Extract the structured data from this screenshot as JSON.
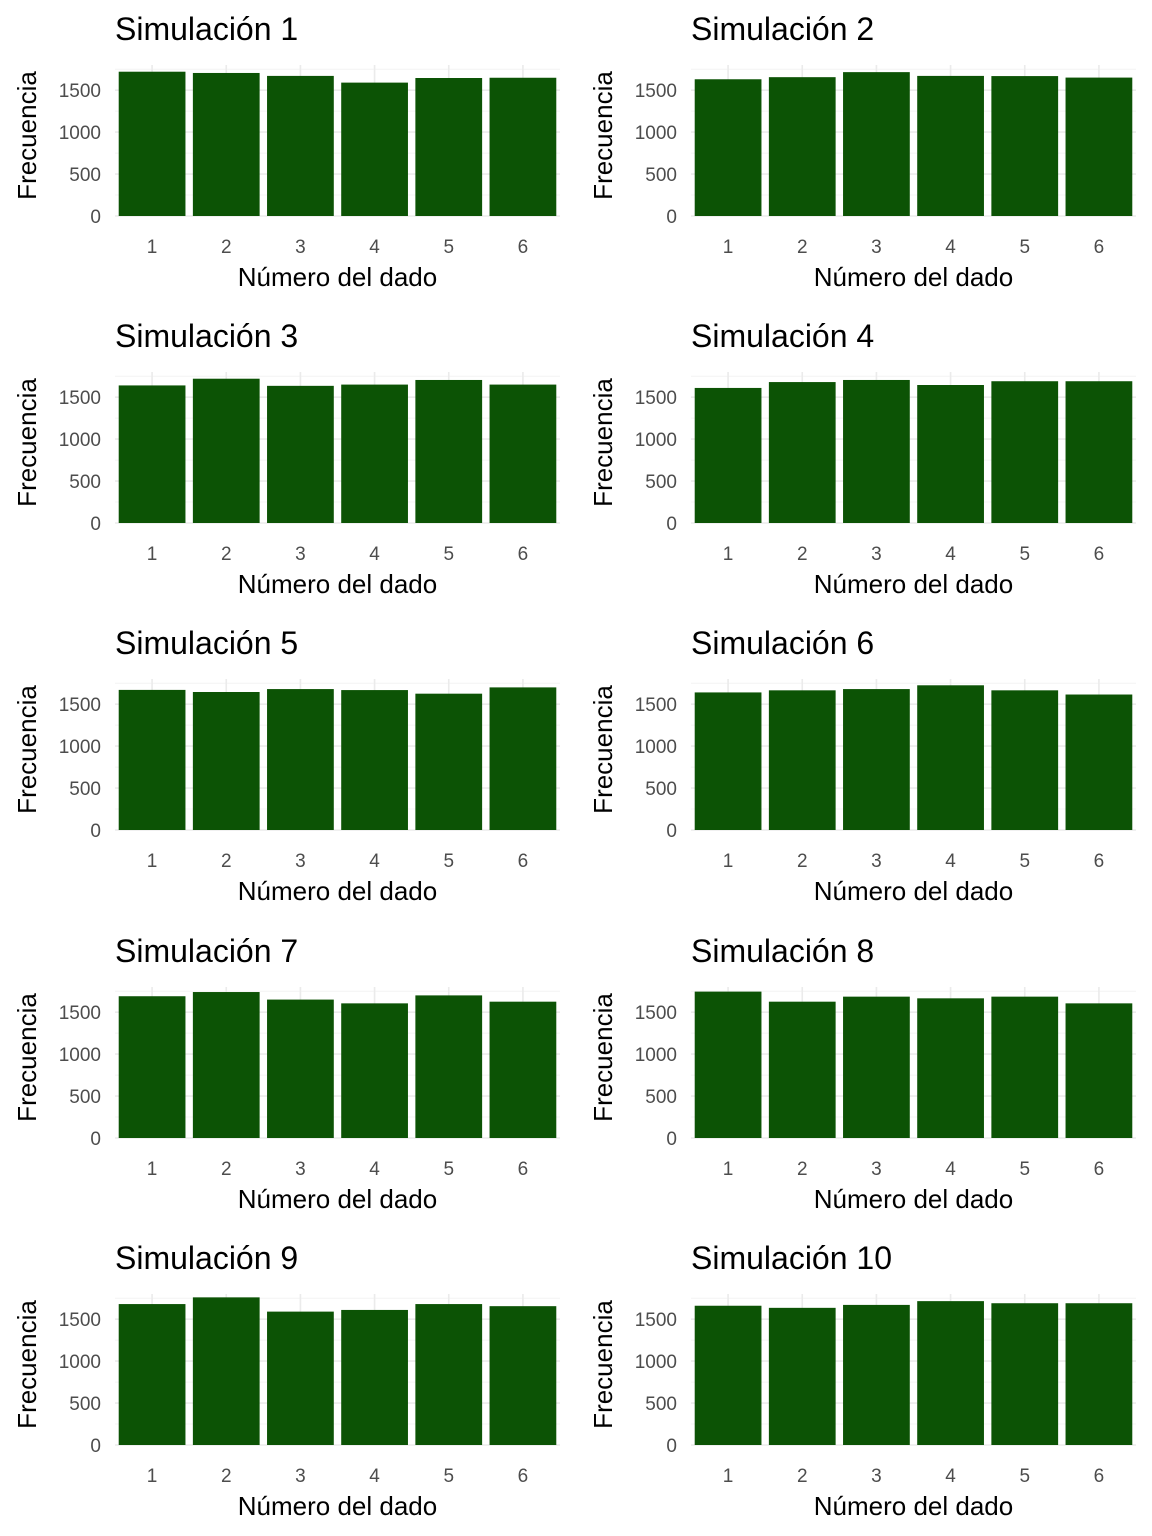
{
  "colors": {
    "bar": "#0c5305",
    "grid_major": "#ebebeb",
    "grid_minor": "#f4f4f4",
    "tick_text": "#4d4d4d"
  },
  "chart_data": [
    {
      "type": "bar",
      "title": "Simulación 1",
      "xlabel": "Número del dado",
      "ylabel": "Frecuencia",
      "categories": [
        "1",
        "2",
        "3",
        "4",
        "5",
        "6"
      ],
      "values": [
        1720,
        1705,
        1670,
        1590,
        1645,
        1648
      ],
      "ylim": [
        0,
        1800
      ],
      "yticks": [
        0,
        500,
        1000,
        1500
      ],
      "yticklabels": [
        "0",
        "500",
        "1000",
        "1500"
      ]
    },
    {
      "type": "bar",
      "title": "Simulación 2",
      "xlabel": "Número del dado",
      "ylabel": "Frecuencia",
      "categories": [
        "1",
        "2",
        "3",
        "4",
        "5",
        "6"
      ],
      "values": [
        1630,
        1655,
        1715,
        1670,
        1668,
        1650
      ],
      "ylim": [
        0,
        1800
      ],
      "yticks": [
        0,
        500,
        1000,
        1500
      ],
      "yticklabels": [
        "0",
        "500",
        "1000",
        "1500"
      ]
    },
    {
      "type": "bar",
      "title": "Simulación 3",
      "xlabel": "Número del dado",
      "ylabel": "Frecuencia",
      "categories": [
        "1",
        "2",
        "3",
        "4",
        "5",
        "6"
      ],
      "values": [
        1640,
        1720,
        1635,
        1650,
        1705,
        1650
      ],
      "ylim": [
        0,
        1800
      ],
      "yticks": [
        0,
        500,
        1000,
        1500
      ],
      "yticklabels": [
        "0",
        "500",
        "1000",
        "1500"
      ]
    },
    {
      "type": "bar",
      "title": "Simulación 4",
      "xlabel": "Número del dado",
      "ylabel": "Frecuencia",
      "categories": [
        "1",
        "2",
        "3",
        "4",
        "5",
        "6"
      ],
      "values": [
        1610,
        1680,
        1705,
        1645,
        1690,
        1690
      ],
      "ylim": [
        0,
        1800
      ],
      "yticks": [
        0,
        500,
        1000,
        1500
      ],
      "yticklabels": [
        "0",
        "500",
        "1000",
        "1500"
      ]
    },
    {
      "type": "bar",
      "title": "Simulación 5",
      "xlabel": "Número del dado",
      "ylabel": "Frecuencia",
      "categories": [
        "1",
        "2",
        "3",
        "4",
        "5",
        "6"
      ],
      "values": [
        1670,
        1645,
        1680,
        1668,
        1625,
        1700
      ],
      "ylim": [
        0,
        1800
      ],
      "yticks": [
        0,
        500,
        1000,
        1500
      ],
      "yticklabels": [
        "0",
        "500",
        "1000",
        "1500"
      ]
    },
    {
      "type": "bar",
      "title": "Simulación 6",
      "xlabel": "Número del dado",
      "ylabel": "Frecuencia",
      "categories": [
        "1",
        "2",
        "3",
        "4",
        "5",
        "6"
      ],
      "values": [
        1640,
        1665,
        1680,
        1725,
        1665,
        1615
      ],
      "ylim": [
        0,
        1800
      ],
      "yticks": [
        0,
        500,
        1000,
        1500
      ],
      "yticklabels": [
        "0",
        "500",
        "1000",
        "1500"
      ]
    },
    {
      "type": "bar",
      "title": "Simulación 7",
      "xlabel": "Número del dado",
      "ylabel": "Frecuencia",
      "categories": [
        "1",
        "2",
        "3",
        "4",
        "5",
        "6"
      ],
      "values": [
        1690,
        1740,
        1650,
        1605,
        1700,
        1625
      ],
      "ylim": [
        0,
        1800
      ],
      "yticks": [
        0,
        500,
        1000,
        1500
      ],
      "yticklabels": [
        "0",
        "500",
        "1000",
        "1500"
      ]
    },
    {
      "type": "bar",
      "title": "Simulación 8",
      "xlabel": "Número del dado",
      "ylabel": "Frecuencia",
      "categories": [
        "1",
        "2",
        "3",
        "4",
        "5",
        "6"
      ],
      "values": [
        1745,
        1625,
        1685,
        1665,
        1685,
        1605
      ],
      "ylim": [
        0,
        1800
      ],
      "yticks": [
        0,
        500,
        1000,
        1500
      ],
      "yticklabels": [
        "0",
        "500",
        "1000",
        "1500"
      ]
    },
    {
      "type": "bar",
      "title": "Simulación 9",
      "xlabel": "Número del dado",
      "ylabel": "Frecuencia",
      "categories": [
        "1",
        "2",
        "3",
        "4",
        "5",
        "6"
      ],
      "values": [
        1680,
        1760,
        1590,
        1610,
        1680,
        1655
      ],
      "ylim": [
        0,
        1800
      ],
      "yticks": [
        0,
        500,
        1000,
        1500
      ],
      "yticklabels": [
        "0",
        "500",
        "1000",
        "1500"
      ]
    },
    {
      "type": "bar",
      "title": "Simulación 10",
      "xlabel": "Número del dado",
      "ylabel": "Frecuencia",
      "categories": [
        "1",
        "2",
        "3",
        "4",
        "5",
        "6"
      ],
      "values": [
        1660,
        1635,
        1670,
        1715,
        1690,
        1690
      ],
      "ylim": [
        0,
        1800
      ],
      "yticks": [
        0,
        500,
        1000,
        1500
      ],
      "yticklabels": [
        "0",
        "500",
        "1000",
        "1500"
      ]
    }
  ]
}
